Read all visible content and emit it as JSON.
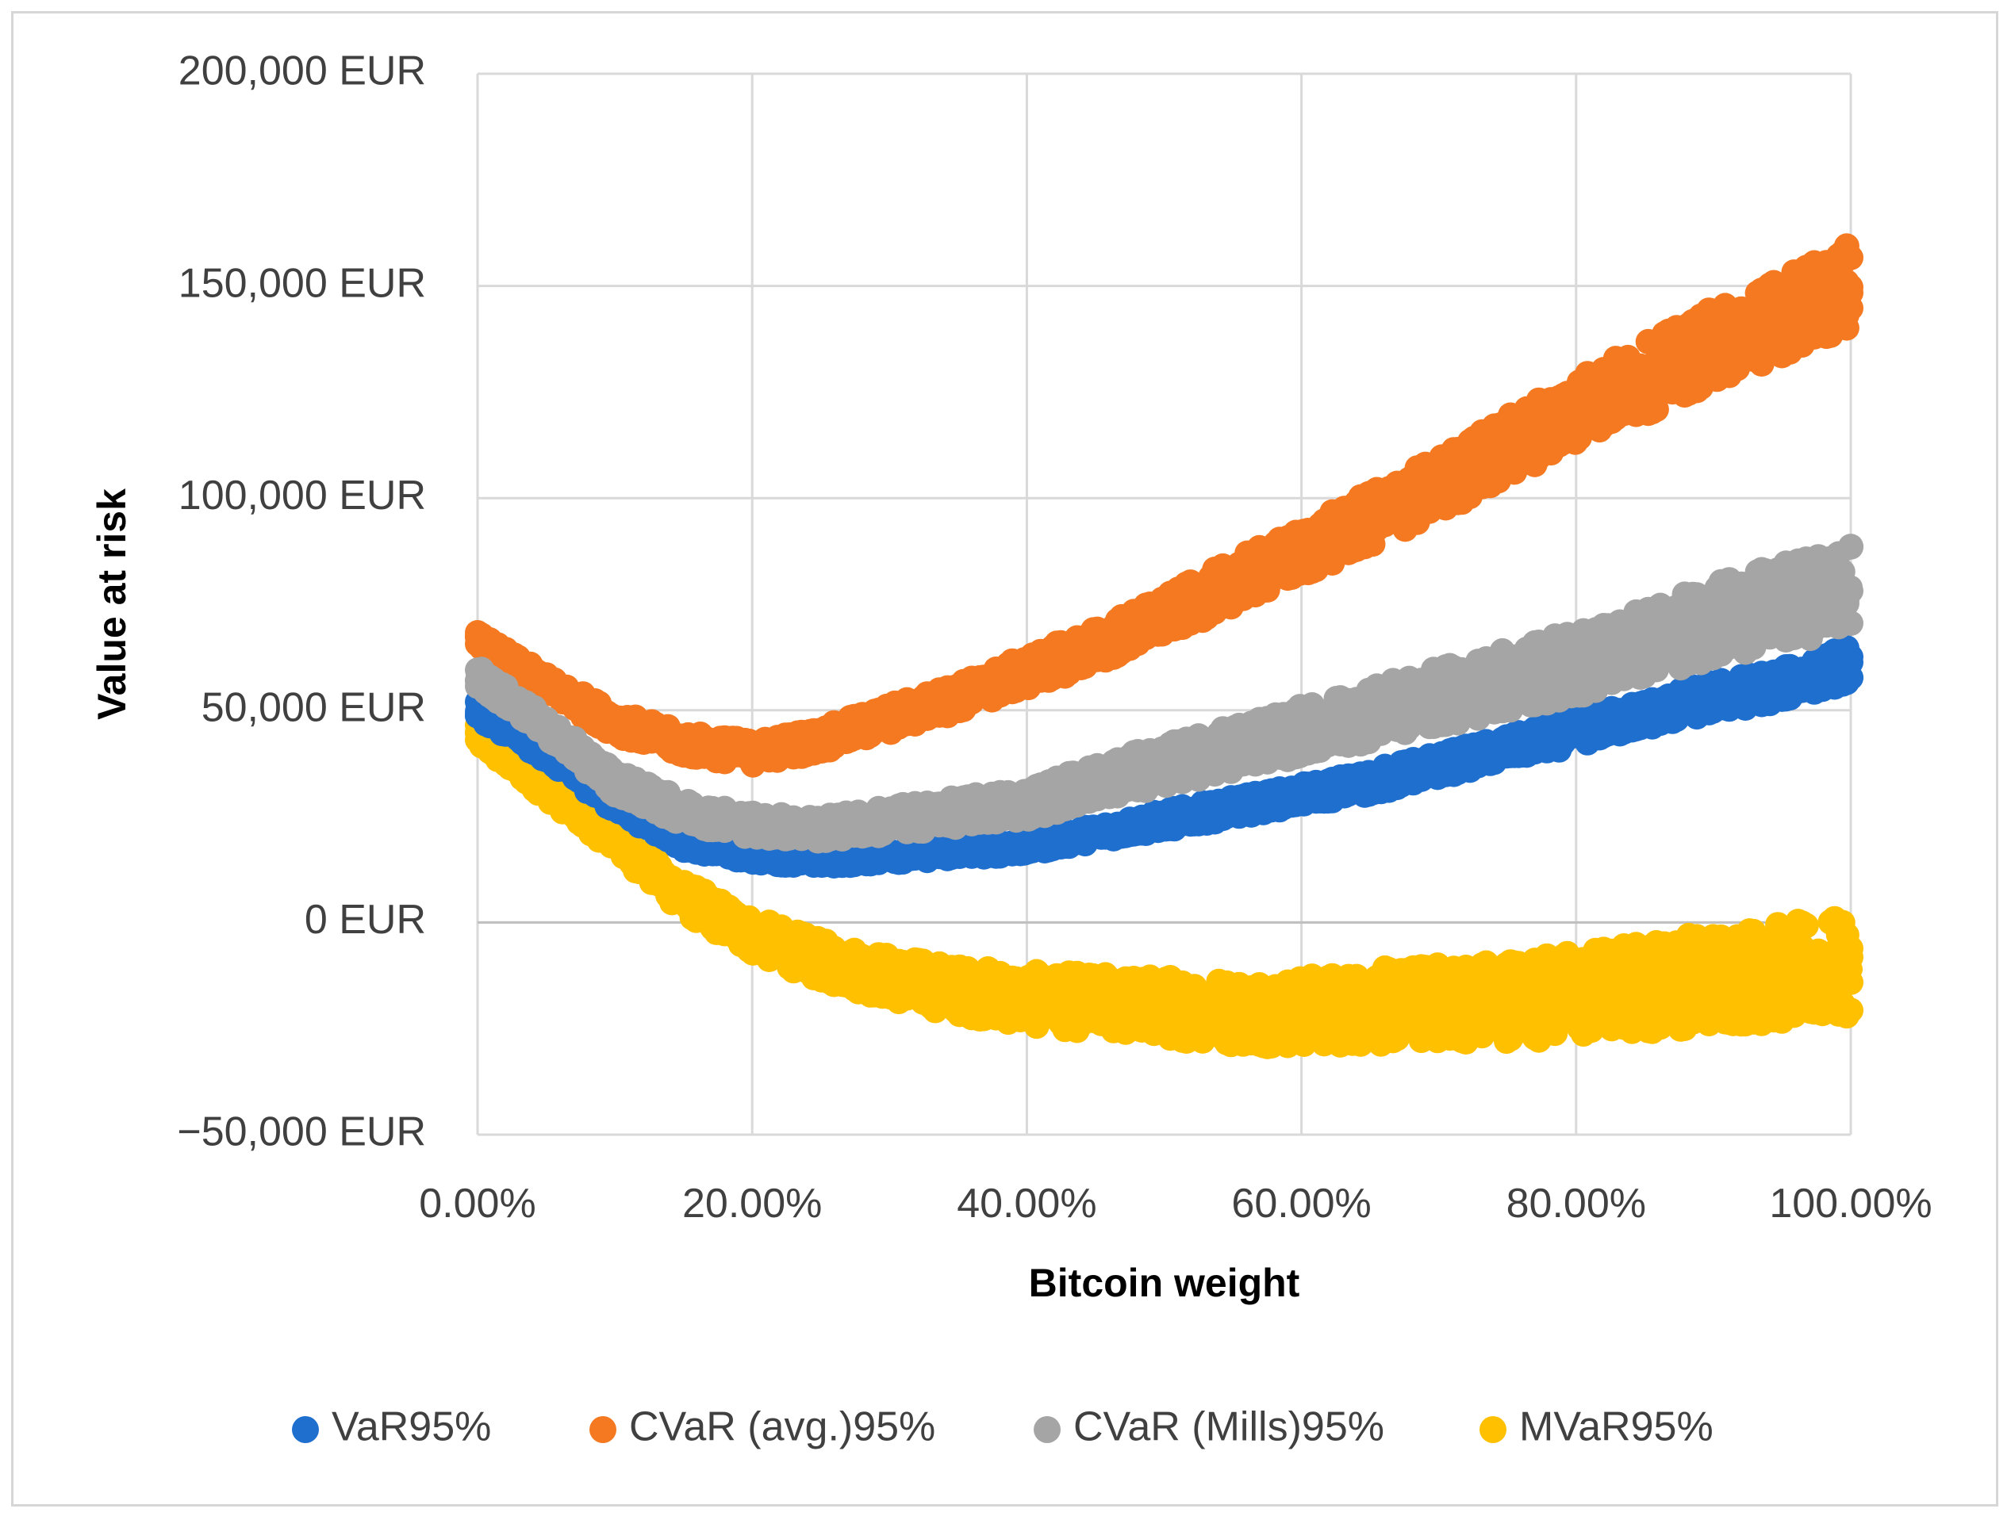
{
  "chart_data": {
    "type": "scatter",
    "title": "",
    "xlabel": "Bitcoin weight",
    "ylabel": "Value at risk",
    "xlim": [
      0,
      100
    ],
    "ylim": [
      -50000,
      200000
    ],
    "grid": true,
    "legend_position": "bottom",
    "x_ticks": [
      0,
      20,
      40,
      60,
      80,
      100
    ],
    "x_tick_labels": [
      "0.00%",
      "20.00%",
      "40.00%",
      "60.00%",
      "80.00%",
      "100.00%"
    ],
    "y_ticks": [
      200000,
      150000,
      100000,
      50000,
      0,
      -50000
    ],
    "y_tick_labels": [
      "200,000 EUR",
      "150,000 EUR",
      "100,000 EUR",
      "50,000 EUR",
      "0 EUR",
      "−50,000 EUR"
    ],
    "x": [
      0,
      5,
      10,
      15,
      20,
      25,
      30,
      35,
      40,
      45,
      50,
      55,
      60,
      65,
      70,
      75,
      80,
      85,
      90,
      95,
      100
    ],
    "series": [
      {
        "name": "VaR95%",
        "color": "#1f6fcf",
        "center": [
          50000,
          40000,
          28000,
          19000,
          16000,
          15000,
          16000,
          17000,
          18000,
          21000,
          24000,
          27000,
          30000,
          33000,
          37000,
          41000,
          45000,
          49000,
          53000,
          56000,
          61000
        ],
        "spread": [
          2000,
          2000,
          2000,
          2000,
          2000,
          2000,
          2000,
          2000,
          2000,
          2000,
          2500,
          2500,
          2500,
          3000,
          3000,
          3000,
          3500,
          3500,
          4000,
          4000,
          4500
        ]
      },
      {
        "name": "CVaR (avg.)95%",
        "color": "#f47920",
        "center": [
          66000,
          56000,
          47000,
          42000,
          40000,
          43000,
          48000,
          53000,
          59000,
          65000,
          72000,
          80000,
          87000,
          95000,
          103000,
          112000,
          121000,
          128000,
          136000,
          143000,
          150000
        ],
        "spread": [
          2500,
          2500,
          3000,
          3000,
          3000,
          3000,
          3500,
          3500,
          4000,
          4500,
          5000,
          5500,
          6000,
          6500,
          7000,
          7500,
          8000,
          8500,
          9000,
          9500,
          10000
        ]
      },
      {
        "name": "CVaR (Mills)95%",
        "color": "#a5a5a5",
        "center": [
          58000,
          46000,
          33000,
          26000,
          23000,
          22000,
          24000,
          26000,
          28000,
          33000,
          37000,
          41000,
          45000,
          49000,
          53000,
          57000,
          61000,
          66000,
          71000,
          75000,
          79000
        ],
        "spread": [
          2500,
          2500,
          3000,
          3000,
          3000,
          3000,
          3500,
          3500,
          4000,
          4500,
          5000,
          5500,
          6000,
          6500,
          7000,
          7500,
          8000,
          8500,
          9000,
          9500,
          10000
        ]
      },
      {
        "name": "MVaR95%",
        "color": "#ffc000",
        "center": [
          44000,
          32000,
          20000,
          6000,
          -3000,
          -9000,
          -13000,
          -16000,
          -18000,
          -19000,
          -20000,
          -21000,
          -21000,
          -20000,
          -19000,
          -18000,
          -17000,
          -15000,
          -13000,
          -12000,
          -11000
        ],
        "spread": [
          2500,
          3000,
          3500,
          4000,
          4500,
          5000,
          5500,
          6000,
          6500,
          7000,
          7500,
          8000,
          8500,
          9000,
          9500,
          10000,
          10500,
          11000,
          11500,
          12000,
          12500
        ]
      }
    ]
  }
}
